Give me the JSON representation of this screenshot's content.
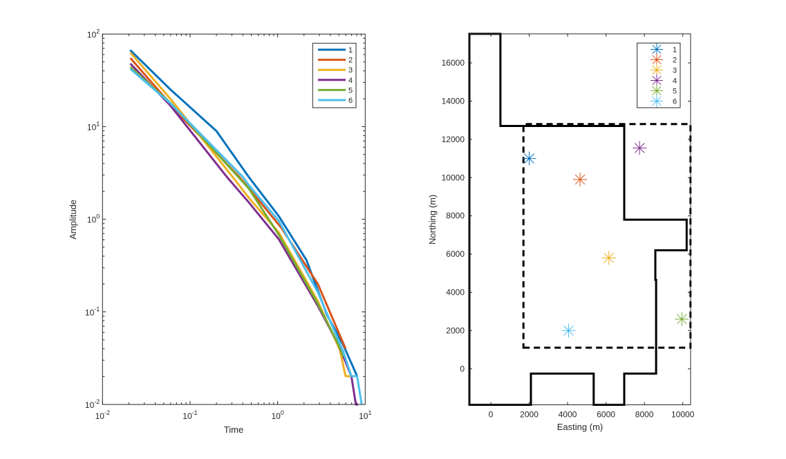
{
  "chart_data": [
    {
      "type": "line",
      "xlabel": "Time",
      "ylabel": "Amplitude",
      "xscale": "log",
      "yscale": "log",
      "xlim": [
        0.01,
        10
      ],
      "ylim": [
        0.01,
        100
      ],
      "xticks": [
        {
          "base": "10",
          "exp": "-2"
        },
        {
          "base": "10",
          "exp": "-1"
        },
        {
          "base": "10",
          "exp": "0"
        },
        {
          "base": "10",
          "exp": "1"
        }
      ],
      "yticks": [
        {
          "base": "10",
          "exp": "-2"
        },
        {
          "base": "10",
          "exp": "-1"
        },
        {
          "base": "10",
          "exp": "0"
        },
        {
          "base": "10",
          "exp": "1"
        },
        {
          "base": "10",
          "exp": "2"
        }
      ],
      "grid": false,
      "legend_position": "top-right",
      "series": [
        {
          "name": "1",
          "color": "#0072BD",
          "points": [
            [
              0.0207,
              67
            ],
            [
              0.0598,
              25.1
            ],
            [
              0.2,
              8.95
            ],
            [
              0.469,
              2.85
            ],
            [
              1.03,
              1.08
            ],
            [
              2.13,
              0.363
            ],
            [
              3.67,
              0.092
            ],
            [
              5.62,
              0.0438
            ],
            [
              8.09,
              0.0202
            ]
          ]
        },
        {
          "name": "2",
          "color": "#D95319",
          "points": [
            [
              0.0208,
              55
            ],
            [
              0.081,
              12.6
            ],
            [
              0.368,
              2.85
            ],
            [
              1.1,
              0.81
            ],
            [
              2.88,
              0.2
            ],
            [
              5.97,
              0.04
            ]
          ]
        },
        {
          "name": "3",
          "color": "#EDB120",
          "points": [
            [
              0.0208,
              63
            ],
            [
              0.0598,
              19.9
            ],
            [
              0.307,
              2.85
            ],
            [
              0.469,
              1.7
            ],
            [
              1.03,
              0.72
            ],
            [
              2.88,
              0.13
            ],
            [
              5.13,
              0.039
            ],
            [
              5.97,
              0.0202
            ],
            [
              6.95,
              0.0202
            ]
          ]
        },
        {
          "name": "4",
          "color": "#7E2F8E",
          "points": [
            [
              0.0208,
              48
            ],
            [
              0.0598,
              16.8
            ],
            [
              0.264,
              2.85
            ],
            [
              0.469,
              1.52
            ],
            [
              1.03,
              0.608
            ],
            [
              2.88,
              0.116
            ],
            [
              4.98,
              0.0438
            ],
            [
              6.95,
              0.0202
            ],
            [
              7.83,
              0.01
            ],
            [
              8.3,
              0.01
            ]
          ]
        },
        {
          "name": "5",
          "color": "#77AC30",
          "points": [
            [
              0.0208,
              44
            ],
            [
              0.0598,
              18
            ],
            [
              0.357,
              2.85
            ],
            [
              0.469,
              2.14
            ],
            [
              1.03,
              0.68
            ],
            [
              2.88,
              0.122
            ],
            [
              5.28,
              0.039
            ],
            [
              5.62,
              0.033
            ]
          ]
        },
        {
          "name": "6",
          "color": "#4DBEEE",
          "points": [
            [
              0.0208,
              42
            ],
            [
              0.0598,
              17.8
            ],
            [
              0.403,
              2.85
            ],
            [
              0.469,
              2.33
            ],
            [
              1.03,
              0.96
            ],
            [
              2.88,
              0.163
            ],
            [
              5.62,
              0.037
            ],
            [
              6.95,
              0.0202
            ],
            [
              8.09,
              0.0202
            ],
            [
              9.12,
              0.01
            ]
          ]
        }
      ]
    },
    {
      "type": "scatter",
      "xlabel": "Easting (m)",
      "ylabel": "Northing (m)",
      "xlim": [
        -1116,
        10407
      ],
      "ylim": [
        -1884,
        17520
      ],
      "xticks": [
        "0",
        "2000",
        "4000",
        "6000",
        "8000",
        "10000"
      ],
      "yticks": [
        "0",
        "2000",
        "4000",
        "6000",
        "8000",
        "10000",
        "12000",
        "14000",
        "16000"
      ],
      "grid": false,
      "legend_position": "top-right",
      "marker": "asterisk",
      "series": [
        {
          "name": "1",
          "color": "#0072BD",
          "x": 2000,
          "y": 11000
        },
        {
          "name": "2",
          "color": "#D95319",
          "x": 4650,
          "y": 9900
        },
        {
          "name": "3",
          "color": "#EDB120",
          "x": 6150,
          "y": 5800
        },
        {
          "name": "4",
          "color": "#7E2F8E",
          "x": 7750,
          "y": 11550
        },
        {
          "name": "5",
          "color": "#77AC30",
          "x": 9950,
          "y": 2600
        },
        {
          "name": "6",
          "color": "#4DBEEE",
          "x": 4050,
          "y": 2000
        }
      ],
      "boundary_solid": [
        [
          -1116,
          17520
        ],
        [
          500,
          17520
        ],
        [
          500,
          12700
        ],
        [
          6950,
          12700
        ],
        [
          6950,
          7800
        ],
        [
          10200,
          7800
        ],
        [
          10200,
          6200
        ],
        [
          8570,
          6200
        ],
        [
          8570,
          4650
        ],
        [
          8610,
          4650
        ],
        [
          8610,
          -250
        ],
        [
          6950,
          -250
        ],
        [
          6950,
          -1884
        ],
        [
          5360,
          -1884
        ],
        [
          5360,
          -250
        ],
        [
          2090,
          -250
        ],
        [
          2090,
          -1884
        ],
        [
          -1116,
          -1884
        ]
      ],
      "boundary_dashed": [
        [
          1700,
          1100
        ],
        [
          10400,
          1100
        ],
        [
          10400,
          12800
        ],
        [
          1700,
          12800
        ]
      ]
    }
  ]
}
